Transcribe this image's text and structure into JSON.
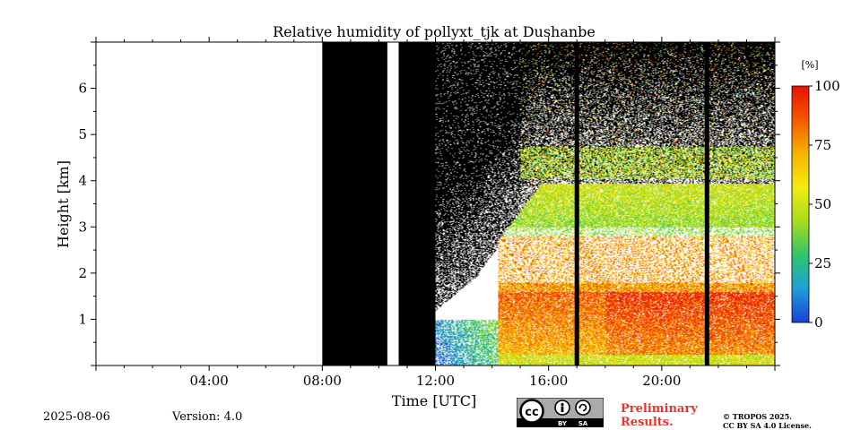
{
  "chart_data": {
    "type": "heatmap",
    "title": "Relative humidity of pollyxt_tjk at Dushanbe",
    "xlabel": "Time [UTC]",
    "ylabel": "Height [km]",
    "xlim_hours": [
      0,
      24
    ],
    "ylim_km": [
      0,
      7
    ],
    "x_ticks": [
      {
        "hour": 4,
        "label": "04:00"
      },
      {
        "hour": 8,
        "label": "08:00"
      },
      {
        "hour": 12,
        "label": "12:00"
      },
      {
        "hour": 16,
        "label": "16:00"
      },
      {
        "hour": 20,
        "label": "20:00"
      }
    ],
    "y_ticks": [
      {
        "km": 1,
        "label": "1"
      },
      {
        "km": 2,
        "label": "2"
      },
      {
        "km": 3,
        "label": "3"
      },
      {
        "km": 4,
        "label": "4"
      },
      {
        "km": 5,
        "label": "5"
      },
      {
        "km": 6,
        "label": "6"
      }
    ],
    "colorbar": {
      "unit_label": "[%]",
      "min": 0,
      "max": 100,
      "ticks": [
        {
          "value": 0,
          "label": "0"
        },
        {
          "value": 25,
          "label": "25"
        },
        {
          "value": 50,
          "label": "50"
        },
        {
          "value": 75,
          "label": "75"
        },
        {
          "value": 100,
          "label": "100"
        }
      ],
      "colormap": [
        "#1b3fd6",
        "#1e9fd8",
        "#2fc56a",
        "#a8dc1c",
        "#f2ec10",
        "#f7b300",
        "#f45a00",
        "#e81000"
      ]
    },
    "no_data_periods_hours": [
      [
        0,
        8
      ],
      [
        10.3,
        10.7
      ]
    ],
    "black_periods_hours": [
      [
        8,
        10.3
      ],
      [
        10.7,
        12
      ]
    ],
    "black_profile_lines_hours": [
      17.0,
      21.6
    ],
    "measurement_start_hour": 12,
    "features": {
      "humid_layer_top_km": 3.8,
      "cloud_base_km": 4.4,
      "low_rh_morning_km": [
        0,
        1.0
      ],
      "high_rh_afternoon_km": [
        0.2,
        1.6
      ]
    }
  },
  "footer": {
    "date": "2025-08-06",
    "version": "Version: 4.0",
    "preliminary": [
      "Preliminary",
      "Results."
    ],
    "copyright": [
      "© TROPOS 2025.",
      "CC BY SA 4.0 License."
    ],
    "license_badge": {
      "main": "cc",
      "by": "BY",
      "sa": "SA"
    }
  }
}
